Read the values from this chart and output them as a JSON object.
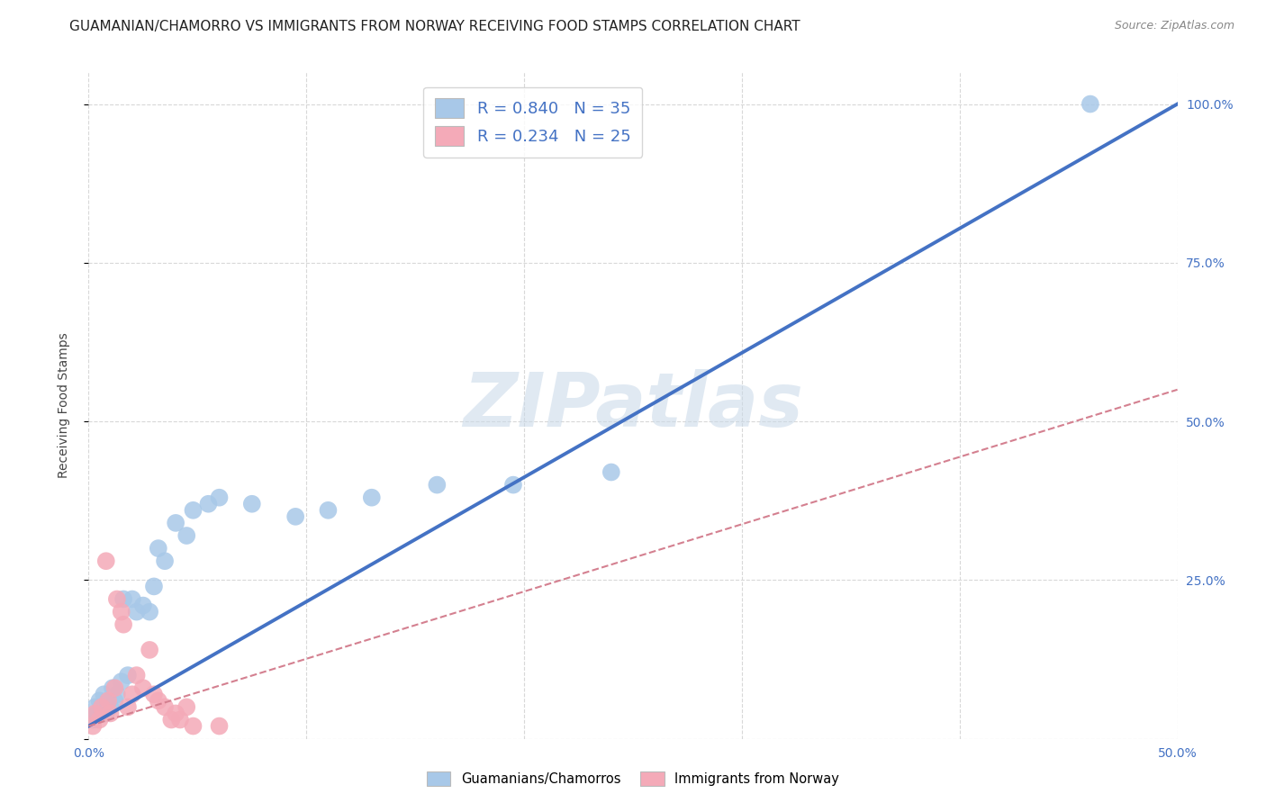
{
  "title": "GUAMANIAN/CHAMORRO VS IMMIGRANTS FROM NORWAY RECEIVING FOOD STAMPS CORRELATION CHART",
  "source": "Source: ZipAtlas.com",
  "ylabel": "Receiving Food Stamps",
  "xlim": [
    0.0,
    0.5
  ],
  "ylim": [
    0.0,
    1.05
  ],
  "x_ticks": [
    0.0,
    0.1,
    0.2,
    0.3,
    0.4,
    0.5
  ],
  "x_tick_labels": [
    "0.0%",
    "",
    "",
    "",
    "",
    "50.0%"
  ],
  "y_ticks": [
    0.0,
    0.25,
    0.5,
    0.75,
    1.0
  ],
  "y_tick_labels": [
    "",
    "25.0%",
    "50.0%",
    "75.0%",
    "100.0%"
  ],
  "watermark": "ZIPatlas",
  "blue_color": "#a8c8e8",
  "blue_line_color": "#4472c4",
  "pink_color": "#f4aab8",
  "pink_line_color": "#d48090",
  "legend_blue_R": "R = 0.840",
  "legend_blue_N": "N = 35",
  "legend_pink_R": "R = 0.234",
  "legend_pink_N": "N = 25",
  "blue_scatter_x": [
    0.002,
    0.003,
    0.004,
    0.005,
    0.006,
    0.007,
    0.008,
    0.009,
    0.01,
    0.011,
    0.012,
    0.013,
    0.015,
    0.016,
    0.018,
    0.02,
    0.022,
    0.025,
    0.028,
    0.03,
    0.032,
    0.035,
    0.04,
    0.045,
    0.048,
    0.055,
    0.06,
    0.075,
    0.095,
    0.11,
    0.13,
    0.16,
    0.195,
    0.24,
    0.46
  ],
  "blue_scatter_y": [
    0.03,
    0.05,
    0.04,
    0.06,
    0.05,
    0.07,
    0.04,
    0.06,
    0.05,
    0.08,
    0.06,
    0.07,
    0.09,
    0.22,
    0.1,
    0.22,
    0.2,
    0.21,
    0.2,
    0.24,
    0.3,
    0.28,
    0.34,
    0.32,
    0.36,
    0.37,
    0.38,
    0.37,
    0.35,
    0.36,
    0.38,
    0.4,
    0.4,
    0.42,
    1.0
  ],
  "pink_scatter_x": [
    0.002,
    0.003,
    0.005,
    0.006,
    0.008,
    0.009,
    0.01,
    0.012,
    0.013,
    0.015,
    0.016,
    0.018,
    0.02,
    0.022,
    0.025,
    0.028,
    0.03,
    0.032,
    0.035,
    0.038,
    0.04,
    0.042,
    0.045,
    0.048,
    0.06
  ],
  "pink_scatter_y": [
    0.02,
    0.04,
    0.03,
    0.05,
    0.28,
    0.06,
    0.04,
    0.08,
    0.22,
    0.2,
    0.18,
    0.05,
    0.07,
    0.1,
    0.08,
    0.14,
    0.07,
    0.06,
    0.05,
    0.03,
    0.04,
    0.03,
    0.05,
    0.02,
    0.02
  ],
  "blue_line_x": [
    0.0,
    0.5
  ],
  "blue_line_y": [
    0.02,
    1.0
  ],
  "pink_line_x": [
    0.0,
    0.5
  ],
  "pink_line_y": [
    0.02,
    0.55
  ],
  "title_fontsize": 11,
  "axis_label_fontsize": 10,
  "tick_fontsize": 10,
  "legend_fontsize": 13,
  "background_color": "#ffffff",
  "grid_color": "#d8d8d8"
}
